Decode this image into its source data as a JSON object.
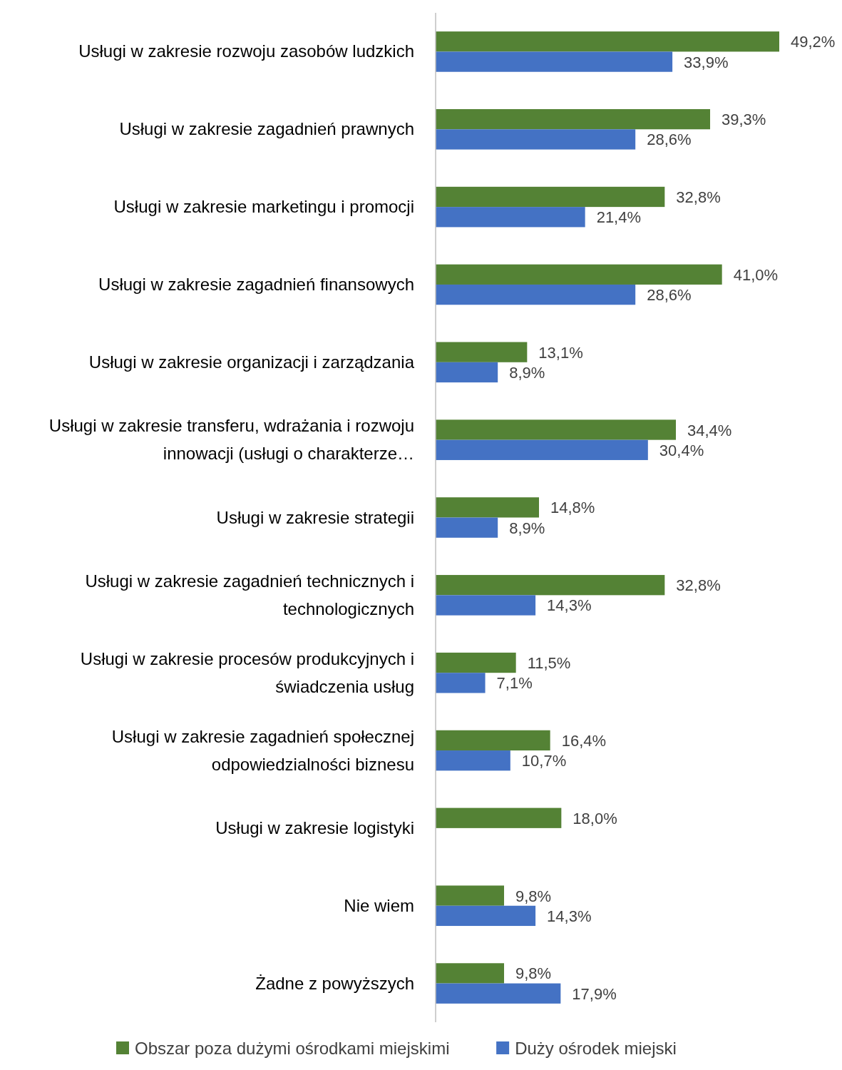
{
  "chart_data": {
    "type": "bar",
    "orientation": "horizontal",
    "legend": "bottom",
    "categories": [
      "Usługi w zakresie rozwoju zasobów ludzkich",
      "Usługi w zakresie zagadnień prawnych",
      "Usługi w zakresie marketingu i promocji",
      "Usługi w zakresie zagadnień finansowych",
      "Usługi w zakresie organizacji i zarządzania",
      "Usługi w zakresie transferu, wdrażania i rozwoju innowacji (usługi o charakterze…",
      "Usługi w zakresie strategii",
      "Usługi w zakresie zagadnień technicznych i technologicznych",
      "Usługi w zakresie procesów produkcyjnych i świadczenia usług",
      "Usługi w zakresie zagadnień społecznej odpowiedzialności biznesu",
      "Usługi w zakresie logistyki",
      "Nie wiem",
      "Żadne z powyższych"
    ],
    "series": [
      {
        "name": "Obszar poza dużymi ośrodkami miejskimi",
        "color": "#548235",
        "values": [
          49.2,
          39.3,
          32.8,
          41.0,
          13.1,
          34.4,
          14.8,
          32.8,
          11.5,
          16.4,
          18.0,
          9.8,
          9.8
        ],
        "value_labels": [
          "49,2%",
          "39,3%",
          "32,8%",
          "41,0%",
          "13,1%",
          "34,4%",
          "14,8%",
          "32,8%",
          "11,5%",
          "16,4%",
          "18,0%",
          "9,8%",
          "9,8%"
        ]
      },
      {
        "name": "Duży ośrodek miejski",
        "color": "#4472c4",
        "values": [
          33.9,
          28.6,
          21.4,
          28.6,
          8.9,
          30.4,
          8.9,
          14.3,
          7.1,
          10.7,
          null,
          14.3,
          17.9
        ],
        "value_labels": [
          "33,9%",
          "28,6%",
          "21,4%",
          "28,6%",
          "8,9%",
          "30,4%",
          "8,9%",
          "14,3%",
          "7,1%",
          "10,7%",
          null,
          "14,3%",
          "17,9%"
        ]
      }
    ]
  }
}
